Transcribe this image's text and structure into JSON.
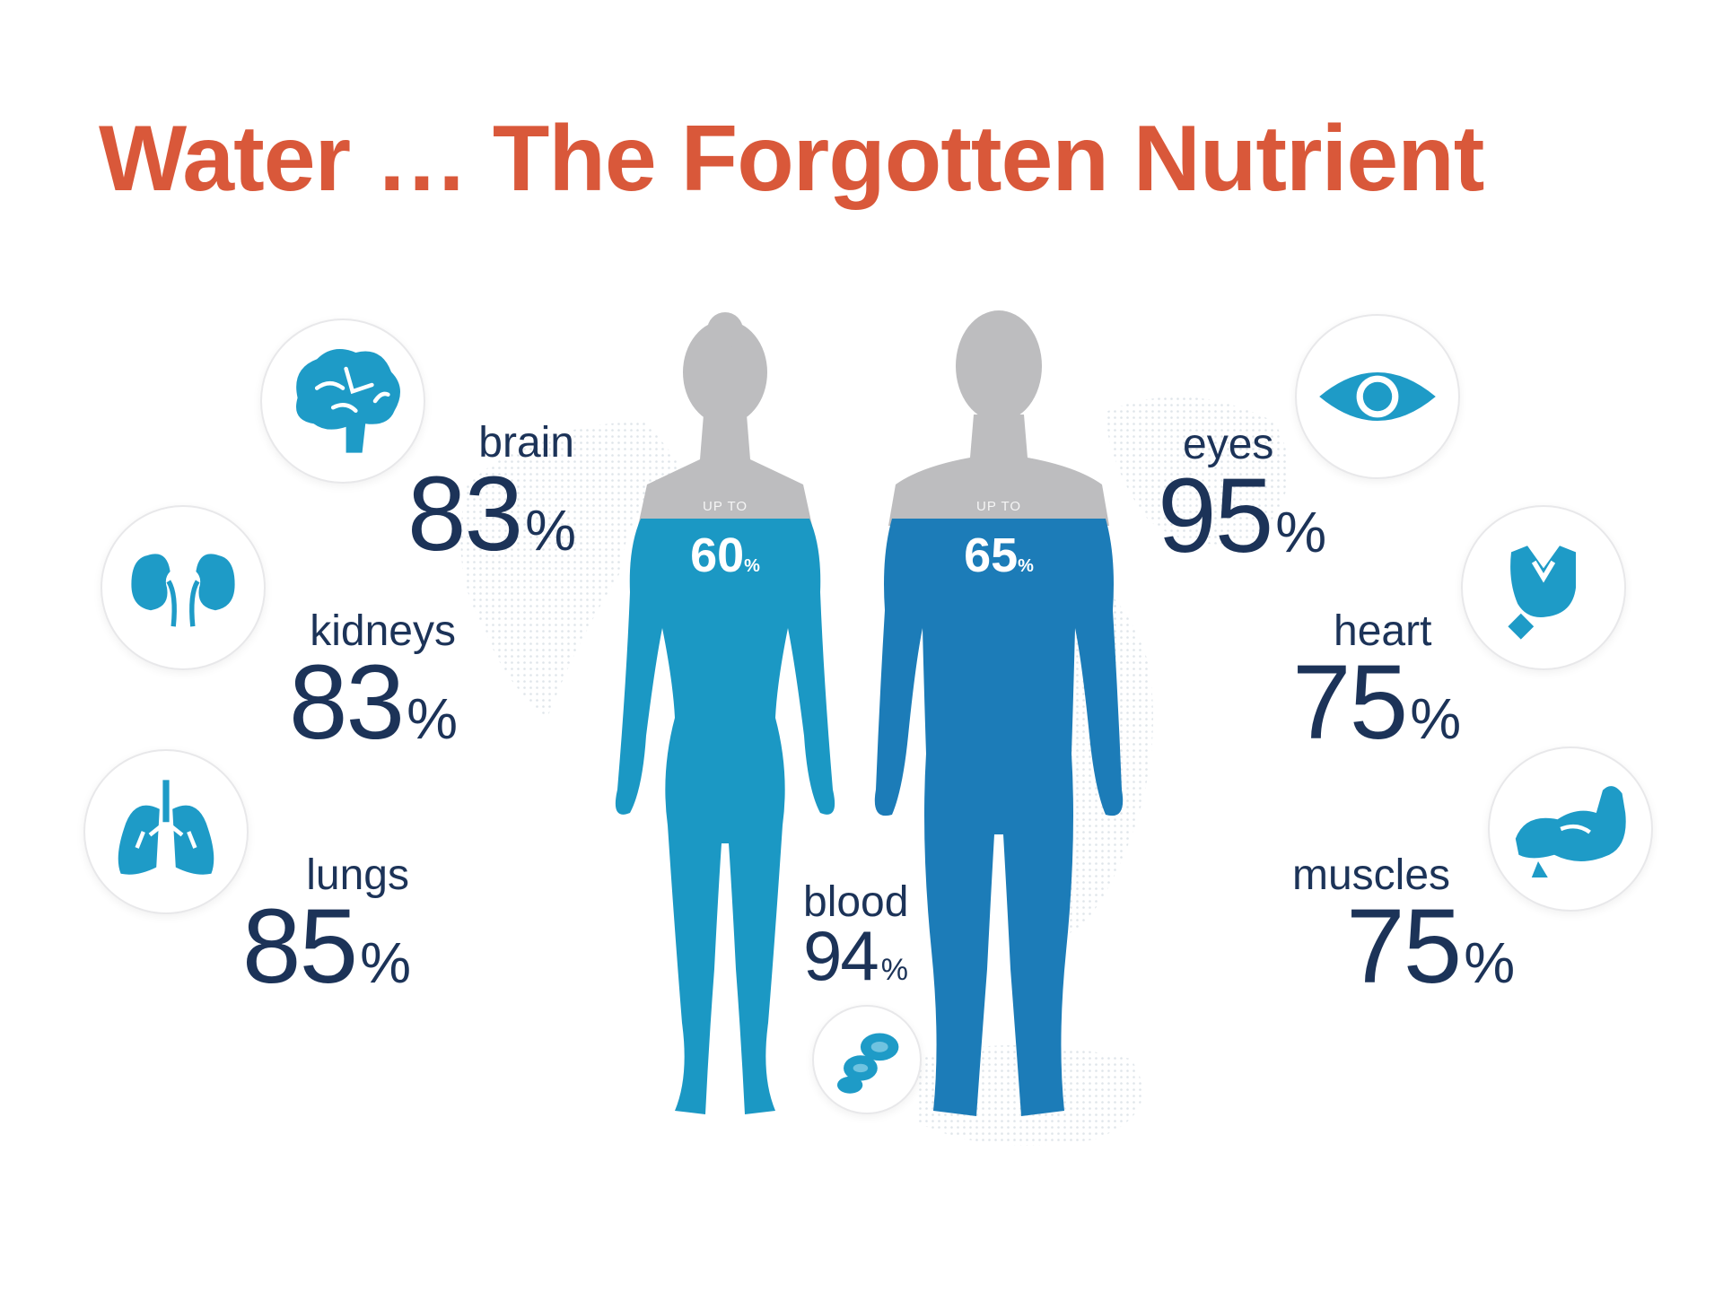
{
  "title": "Water …  The Forgotten Nutrient",
  "colors": {
    "title": "#d9583a",
    "text": "#1c3358",
    "icon": "#1e9bc7",
    "female": "#1b98c4",
    "male": "#1c7cb8",
    "head": "#bdbdbf"
  },
  "organs": {
    "brain": {
      "label": "brain",
      "value": "83",
      "unit": "%",
      "icon": "brain-icon"
    },
    "kidneys": {
      "label": "kidneys",
      "value": "83",
      "unit": "%",
      "icon": "kidneys-icon"
    },
    "lungs": {
      "label": "lungs",
      "value": "85",
      "unit": "%",
      "icon": "lungs-icon"
    },
    "eyes": {
      "label": "eyes",
      "value": "95",
      "unit": "%",
      "icon": "eye-icon"
    },
    "heart": {
      "label": "heart",
      "value": "75",
      "unit": "%",
      "icon": "heart-icon"
    },
    "muscles": {
      "label": "muscles",
      "value": "75",
      "unit": "%",
      "icon": "muscle-icon"
    },
    "blood": {
      "label": "blood",
      "value": "94",
      "unit": "%",
      "icon": "blood-cells-icon"
    }
  },
  "figures": {
    "female": {
      "prefix": "UP TO",
      "value": "60",
      "unit": "%",
      "fill_fraction": 0.6
    },
    "male": {
      "prefix": "UP TO",
      "value": "65",
      "unit": "%",
      "fill_fraction": 0.65
    }
  }
}
